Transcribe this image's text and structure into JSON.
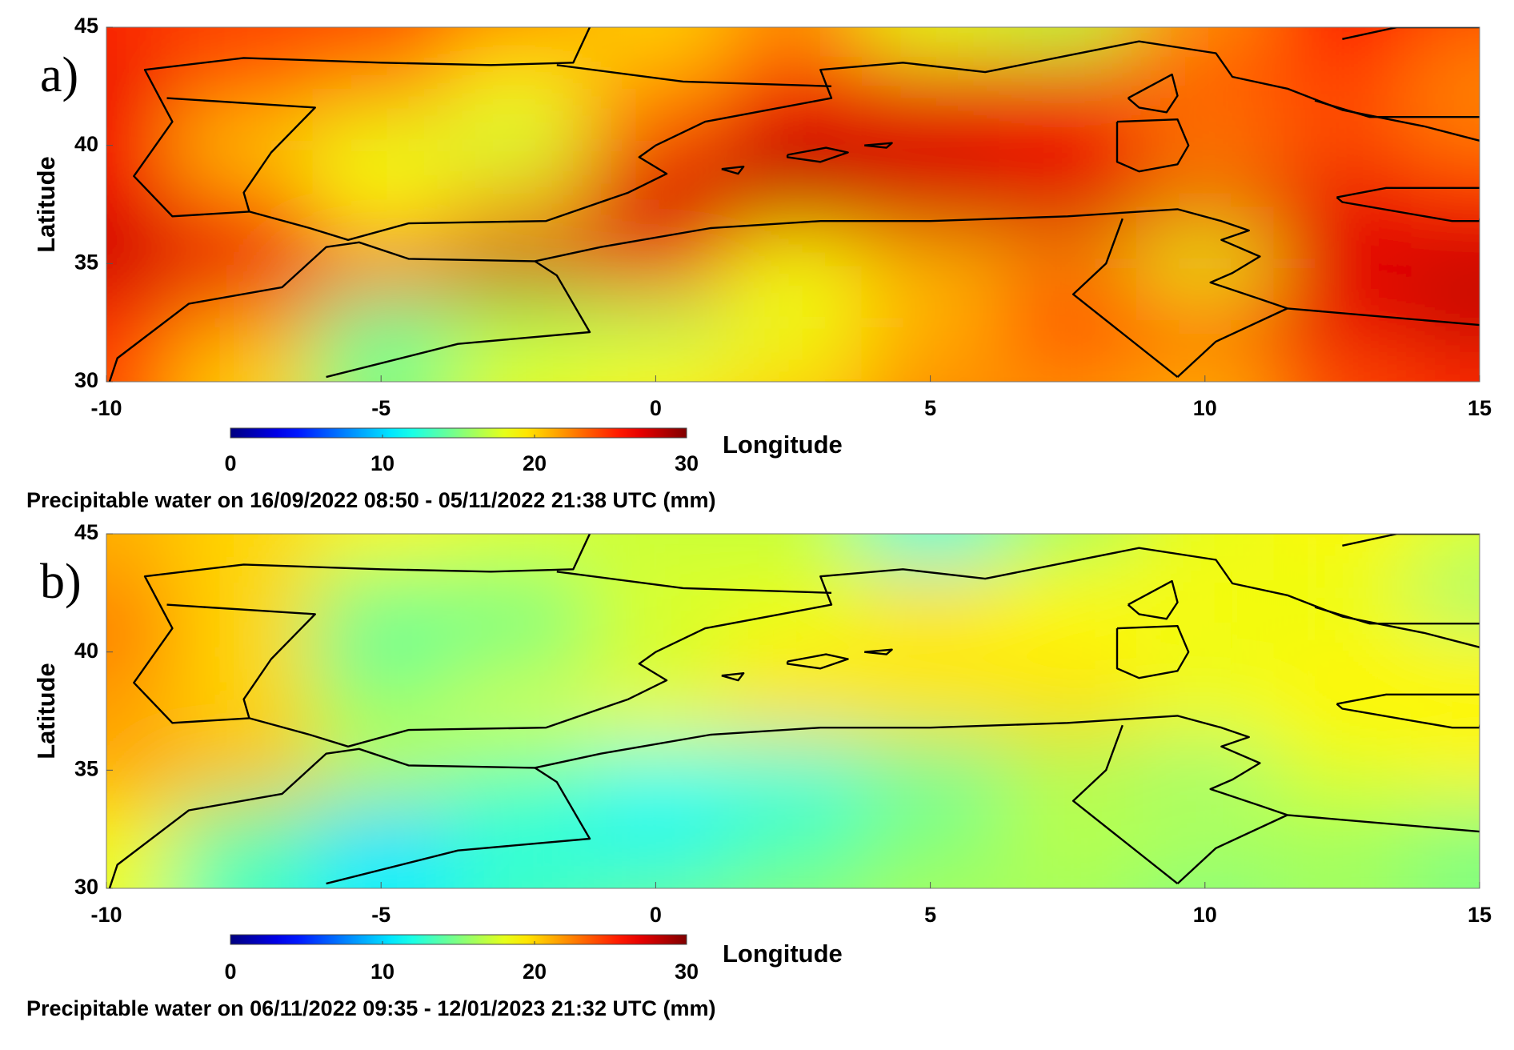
{
  "chart_data": [
    {
      "type": "heatmap",
      "panel_label": "a)",
      "x_label": "Longitude",
      "y_label": "Latitude",
      "colorbar_label": "Precipitable water on 16/09/2022 08:50 - 05/11/2022 21:38 UTC (mm)",
      "colormap": "jet",
      "clim": [
        0,
        30
      ],
      "cticks": [
        0,
        10,
        20,
        30
      ],
      "xlim": [
        -10,
        15
      ],
      "ylim": [
        30,
        45
      ],
      "xticks": [
        -10,
        -5,
        0,
        5,
        10,
        15
      ],
      "yticks": [
        30,
        35,
        40,
        45
      ],
      "x": [
        -10,
        -7.5,
        -5,
        -2.5,
        0,
        2.5,
        5,
        7.5,
        10,
        12.5,
        15
      ],
      "y": [
        45,
        42.5,
        40,
        37.5,
        35,
        32.5,
        30
      ],
      "values": [
        [
          25,
          24,
          24,
          22,
          20,
          22,
          18,
          17,
          22,
          26,
          24
        ],
        [
          27,
          24,
          22,
          19,
          22,
          26,
          27,
          27,
          25,
          24,
          22
        ],
        [
          26,
          20,
          18,
          17,
          24,
          28,
          27,
          26,
          22,
          24,
          23
        ],
        [
          27,
          24,
          19,
          21,
          28,
          28,
          28,
          28,
          27,
          27,
          26
        ],
        [
          28,
          27,
          26,
          28,
          25,
          19,
          21,
          22,
          18,
          27,
          28
        ],
        [
          25,
          22,
          14,
          16,
          16,
          18,
          21,
          26,
          26,
          27,
          28
        ],
        [
          24,
          20,
          15,
          18,
          19,
          20,
          22,
          22,
          21,
          24,
          25
        ]
      ]
    },
    {
      "type": "heatmap",
      "panel_label": "b)",
      "x_label": "Longitude",
      "y_label": "Latitude",
      "colorbar_label": "Precipitable water on 06/11/2022 09:35 - 12/01/2023 21:32 UTC (mm)",
      "colormap": "jet",
      "clim": [
        0,
        30
      ],
      "cticks": [
        0,
        10,
        20,
        30
      ],
      "xlim": [
        -10,
        15
      ],
      "ylim": [
        30,
        45
      ],
      "xticks": [
        -10,
        -5,
        0,
        5,
        10,
        15
      ],
      "yticks": [
        30,
        35,
        40,
        45
      ],
      "x": [
        -10,
        -7.5,
        -5,
        -2.5,
        0,
        2.5,
        5,
        7.5,
        10,
        12.5,
        15
      ],
      "y": [
        45,
        42.5,
        40,
        37.5,
        35,
        32.5,
        30
      ],
      "values": [
        [
          21,
          20,
          19,
          18,
          17,
          17,
          12,
          16,
          18,
          19,
          18
        ],
        [
          22,
          20,
          15,
          15,
          18,
          18,
          20,
          19,
          19,
          18,
          15
        ],
        [
          23,
          20,
          14,
          15,
          17,
          19,
          19,
          19,
          18,
          19,
          19
        ],
        [
          21,
          20,
          16,
          18,
          19,
          20,
          20,
          20,
          19,
          19,
          19
        ],
        [
          22,
          21,
          17,
          14,
          12,
          12,
          14,
          16,
          15,
          18,
          19
        ],
        [
          19,
          14,
          10,
          12,
          11,
          13,
          15,
          17,
          17,
          16,
          15
        ],
        [
          18,
          13,
          11,
          13,
          14,
          15,
          16,
          16,
          15,
          16,
          15
        ]
      ]
    }
  ]
}
